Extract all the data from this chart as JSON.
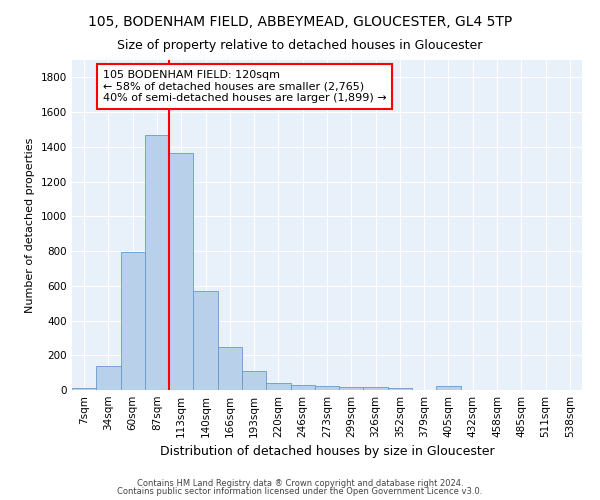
{
  "title_line1": "105, BODENHAM FIELD, ABBEYMEAD, GLOUCESTER, GL4 5TP",
  "title_line2": "Size of property relative to detached houses in Gloucester",
  "xlabel": "Distribution of detached houses by size in Gloucester",
  "ylabel": "Number of detached properties",
  "categories": [
    "7sqm",
    "34sqm",
    "60sqm",
    "87sqm",
    "113sqm",
    "140sqm",
    "166sqm",
    "193sqm",
    "220sqm",
    "246sqm",
    "273sqm",
    "299sqm",
    "326sqm",
    "352sqm",
    "379sqm",
    "405sqm",
    "432sqm",
    "458sqm",
    "485sqm",
    "511sqm",
    "538sqm"
  ],
  "values": [
    12,
    137,
    793,
    1468,
    1365,
    570,
    245,
    108,
    40,
    28,
    22,
    15,
    15,
    12,
    0,
    22,
    0,
    0,
    0,
    0,
    0
  ],
  "bar_color": "#b8d0ea",
  "bar_edge_color": "#6699cc",
  "vline_x": 4.0,
  "vline_color": "red",
  "annotation_text": "105 BODENHAM FIELD: 120sqm\n← 58% of detached houses are smaller (2,765)\n40% of semi-detached houses are larger (1,899) →",
  "annotation_box_color": "white",
  "annotation_box_edge_color": "red",
  "footer_line1": "Contains HM Land Registry data ® Crown copyright and database right 2024.",
  "footer_line2": "Contains public sector information licensed under the Open Government Licence v3.0.",
  "background_color": "#e8f0fa",
  "ylim": [
    0,
    1900
  ],
  "yticks": [
    0,
    200,
    400,
    600,
    800,
    1000,
    1200,
    1400,
    1600,
    1800
  ],
  "title1_fontsize": 10,
  "title2_fontsize": 9,
  "xlabel_fontsize": 9,
  "ylabel_fontsize": 8,
  "tick_fontsize": 7.5,
  "annotation_fontsize": 8,
  "footer_fontsize": 6
}
